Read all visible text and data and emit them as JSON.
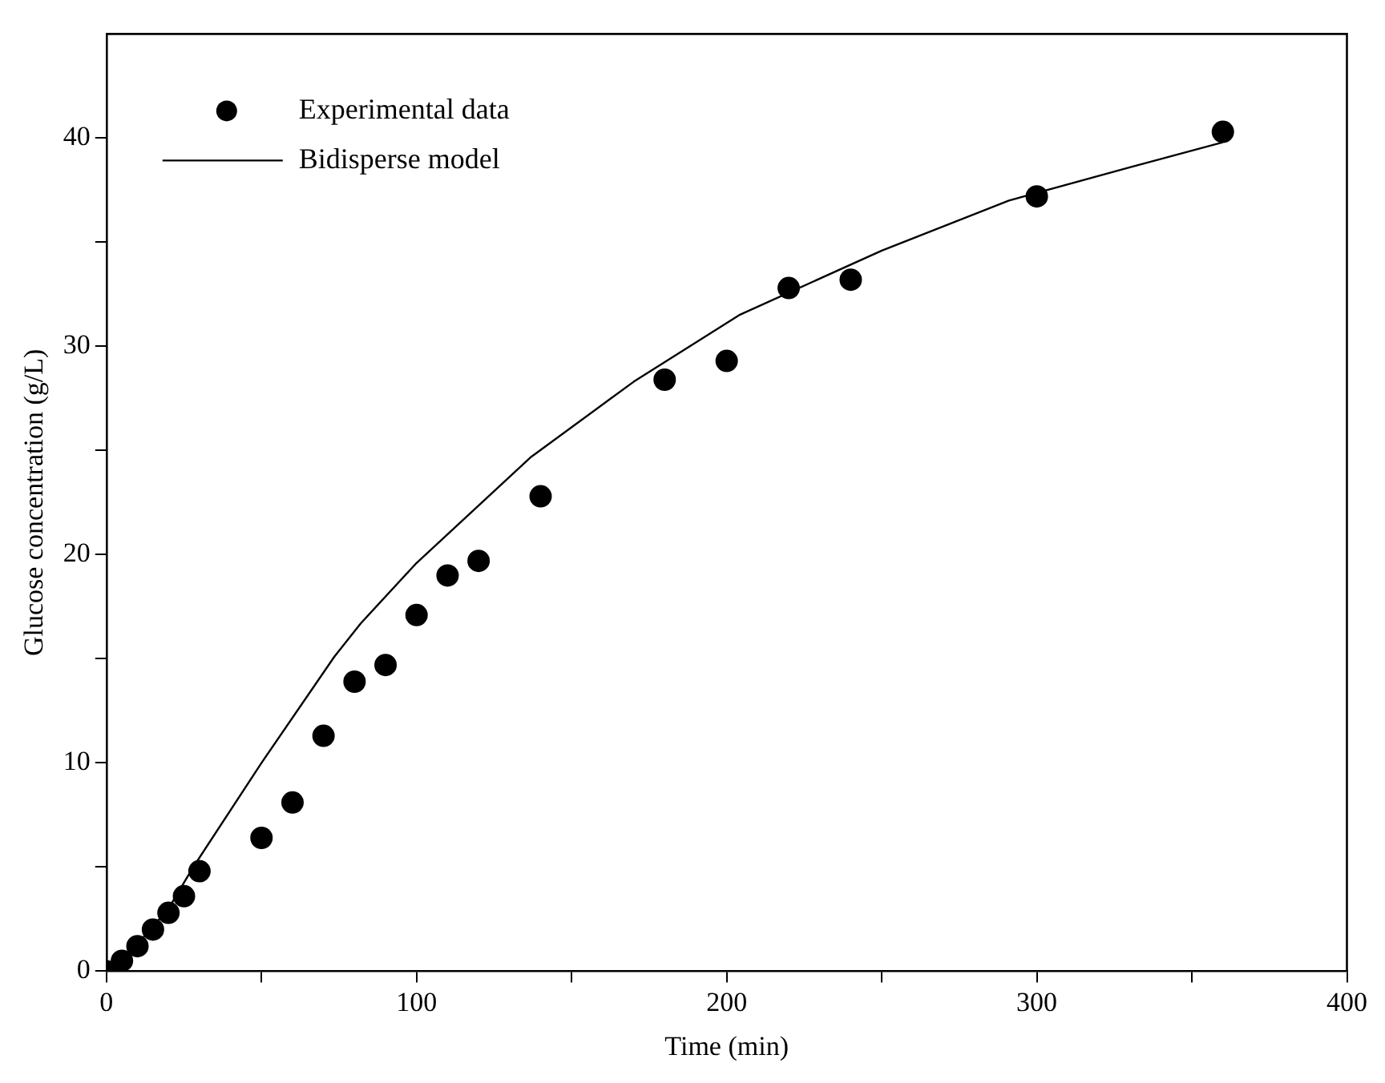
{
  "chart_data": {
    "type": "scatter",
    "xlabel": "Time (min)",
    "ylabel": "Glucose concentration (g/L)",
    "xlim": [
      0,
      400
    ],
    "ylim": [
      0,
      45
    ],
    "xticks": [
      0,
      {
        "value": 50,
        "label": null
      },
      100,
      {
        "value": 150,
        "label": null
      },
      200,
      {
        "value": 250,
        "label": null
      },
      300,
      {
        "value": 350,
        "label": null
      },
      400
    ],
    "yticks": [
      0,
      {
        "value": 5,
        "label": null
      },
      10,
      {
        "value": 15,
        "label": null
      },
      20,
      {
        "value": 25,
        "label": null
      },
      30,
      {
        "value": 35,
        "label": null
      },
      40
    ],
    "grid": false,
    "legend": "top left",
    "series": [
      {
        "name": "Experimental data",
        "marker": "circle",
        "color": "#000000",
        "x": [
          0,
          5,
          10,
          15,
          20,
          25,
          30,
          50,
          60,
          70,
          80,
          90,
          100,
          110,
          120,
          140,
          180,
          200,
          220,
          240,
          300,
          360
        ],
        "values": [
          0,
          0.5,
          1.2,
          2.0,
          2.8,
          3.6,
          4.8,
          6.4,
          8.1,
          11.3,
          13.9,
          14.7,
          17.1,
          19.0,
          19.7,
          22.8,
          28.4,
          29.3,
          32.8,
          33.2,
          37.2,
          40.3
        ]
      },
      {
        "name": "Bidisperse model",
        "type": "line",
        "marker": "none",
        "line_style": "solid",
        "color": "#000000",
        "x": [
          0,
          10,
          20,
          28,
          50,
          73.5,
          82,
          100,
          137,
          170,
          204,
          250,
          291,
          330,
          360
        ],
        "values": [
          0,
          1.3,
          3.0,
          5.0,
          10.0,
          15.1,
          16.7,
          19.6,
          24.7,
          28.3,
          31.5,
          34.6,
          37.0,
          38.6,
          39.8
        ]
      }
    ]
  }
}
